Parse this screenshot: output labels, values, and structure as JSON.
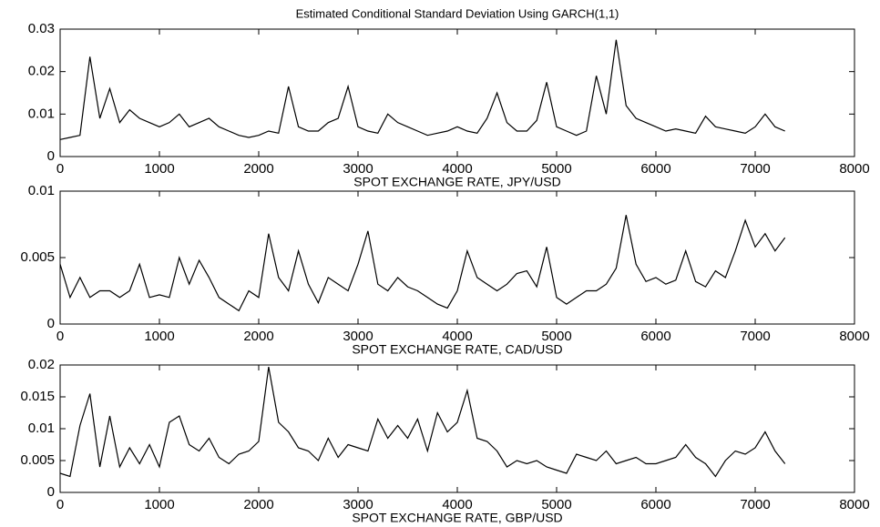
{
  "chart_data": [
    {
      "type": "line",
      "title": "Estimated Conditional Standard Deviation Using GARCH(1,1)",
      "x_label": "SPOT EXCHANGE RATE, JPY/USD",
      "x": [
        0,
        100,
        200,
        300,
        400,
        500,
        600,
        700,
        800,
        900,
        1000,
        1100,
        1200,
        1300,
        1400,
        1500,
        1600,
        1700,
        1800,
        1900,
        2000,
        2100,
        2200,
        2300,
        2400,
        2500,
        2600,
        2700,
        2800,
        2900,
        3000,
        3100,
        3200,
        3300,
        3400,
        3500,
        3600,
        3700,
        3800,
        3900,
        4000,
        4100,
        4200,
        4300,
        4400,
        4500,
        4600,
        4700,
        4800,
        4900,
        5000,
        5100,
        5200,
        5300,
        5400,
        5500,
        5600,
        5700,
        5800,
        5900,
        6000,
        6100,
        6200,
        6300,
        6400,
        6500,
        6600,
        6700,
        6800,
        6900,
        7000,
        7100,
        7200,
        7300
      ],
      "series": [
        {
          "color": "#000000",
          "values": [
            0.004,
            0.0045,
            0.005,
            0.0235,
            0.009,
            0.016,
            0.008,
            0.011,
            0.009,
            0.008,
            0.007,
            0.008,
            0.01,
            0.007,
            0.008,
            0.009,
            0.007,
            0.006,
            0.005,
            0.0045,
            0.005,
            0.006,
            0.0055,
            0.0165,
            0.007,
            0.006,
            0.006,
            0.008,
            0.009,
            0.0165,
            0.007,
            0.006,
            0.0055,
            0.01,
            0.008,
            0.007,
            0.006,
            0.005,
            0.0055,
            0.006,
            0.007,
            0.006,
            0.0055,
            0.009,
            0.015,
            0.008,
            0.006,
            0.006,
            0.0085,
            0.0175,
            0.007,
            0.006,
            0.005,
            0.006,
            0.019,
            0.01,
            0.0275,
            0.012,
            0.009,
            0.008,
            0.007,
            0.006,
            0.0065,
            0.006,
            0.0055,
            0.0095,
            0.007,
            0.0065,
            0.006,
            0.0055,
            0.007,
            0.01,
            0.007,
            0.006
          ]
        }
      ],
      "xlim": [
        0,
        8000
      ],
      "xticks": [
        0,
        1000,
        2000,
        3000,
        4000,
        5000,
        6000,
        7000,
        8000
      ],
      "ylim": [
        0,
        0.03
      ],
      "yticks": [
        0,
        0.01,
        0.02,
        0.03
      ]
    },
    {
      "type": "line",
      "x_label": "SPOT EXCHANGE RATE, CAD/USD",
      "x": [
        0,
        100,
        200,
        300,
        400,
        500,
        600,
        700,
        800,
        900,
        1000,
        1100,
        1200,
        1300,
        1400,
        1500,
        1600,
        1700,
        1800,
        1900,
        2000,
        2100,
        2200,
        2300,
        2400,
        2500,
        2600,
        2700,
        2800,
        2900,
        3000,
        3100,
        3200,
        3300,
        3400,
        3500,
        3600,
        3700,
        3800,
        3900,
        4000,
        4100,
        4200,
        4300,
        4400,
        4500,
        4600,
        4700,
        4800,
        4900,
        5000,
        5100,
        5200,
        5300,
        5400,
        5500,
        5600,
        5700,
        5800,
        5900,
        6000,
        6100,
        6200,
        6300,
        6400,
        6500,
        6600,
        6700,
        6800,
        6900,
        7000,
        7100,
        7200,
        7300
      ],
      "series": [
        {
          "color": "#000000",
          "values": [
            0.0045,
            0.002,
            0.0035,
            0.002,
            0.0025,
            0.0025,
            0.002,
            0.0025,
            0.0045,
            0.002,
            0.0022,
            0.002,
            0.005,
            0.003,
            0.0048,
            0.0035,
            0.002,
            0.0015,
            0.001,
            0.0025,
            0.002,
            0.0068,
            0.0035,
            0.0025,
            0.0055,
            0.003,
            0.0016,
            0.0035,
            0.003,
            0.0025,
            0.0045,
            0.007,
            0.003,
            0.0025,
            0.0035,
            0.0028,
            0.0025,
            0.002,
            0.0015,
            0.0012,
            0.0025,
            0.0055,
            0.0035,
            0.003,
            0.0025,
            0.003,
            0.0038,
            0.004,
            0.0028,
            0.0058,
            0.002,
            0.0015,
            0.002,
            0.0025,
            0.0025,
            0.003,
            0.0042,
            0.0082,
            0.0045,
            0.0032,
            0.0035,
            0.003,
            0.0033,
            0.0055,
            0.0032,
            0.0028,
            0.004,
            0.0035,
            0.0055,
            0.0078,
            0.0058,
            0.0068,
            0.0055,
            0.0065
          ]
        }
      ],
      "xlim": [
        0,
        8000
      ],
      "xticks": [
        0,
        1000,
        2000,
        3000,
        4000,
        5000,
        6000,
        7000,
        8000
      ],
      "ylim": [
        0,
        0.01
      ],
      "yticks": [
        0,
        0.005,
        0.01
      ]
    },
    {
      "type": "line",
      "x_label": "SPOT EXCHANGE RATE, GBP/USD",
      "x": [
        0,
        100,
        200,
        300,
        400,
        500,
        600,
        700,
        800,
        900,
        1000,
        1100,
        1200,
        1300,
        1400,
        1500,
        1600,
        1700,
        1800,
        1900,
        2000,
        2100,
        2200,
        2300,
        2400,
        2500,
        2600,
        2700,
        2800,
        2900,
        3000,
        3100,
        3200,
        3300,
        3400,
        3500,
        3600,
        3700,
        3800,
        3900,
        4000,
        4100,
        4200,
        4300,
        4400,
        4500,
        4600,
        4700,
        4800,
        4900,
        5000,
        5100,
        5200,
        5300,
        5400,
        5500,
        5600,
        5700,
        5800,
        5900,
        6000,
        6100,
        6200,
        6300,
        6400,
        6500,
        6600,
        6700,
        6800,
        6900,
        7000,
        7100,
        7200,
        7300
      ],
      "series": [
        {
          "color": "#000000",
          "values": [
            0.003,
            0.0025,
            0.0105,
            0.0155,
            0.004,
            0.012,
            0.004,
            0.007,
            0.0045,
            0.0075,
            0.004,
            0.011,
            0.012,
            0.0075,
            0.0065,
            0.0085,
            0.0055,
            0.0045,
            0.006,
            0.0065,
            0.008,
            0.0197,
            0.011,
            0.0095,
            0.007,
            0.0065,
            0.005,
            0.0085,
            0.0055,
            0.0075,
            0.007,
            0.0065,
            0.0115,
            0.0085,
            0.0105,
            0.0085,
            0.0115,
            0.0065,
            0.0125,
            0.0095,
            0.011,
            0.016,
            0.0085,
            0.008,
            0.0065,
            0.004,
            0.005,
            0.0045,
            0.005,
            0.004,
            0.0035,
            0.003,
            0.006,
            0.0055,
            0.005,
            0.0065,
            0.0045,
            0.005,
            0.0055,
            0.0045,
            0.0045,
            0.005,
            0.0055,
            0.0075,
            0.0055,
            0.0045,
            0.0025,
            0.005,
            0.0065,
            0.006,
            0.007,
            0.0095,
            0.0065,
            0.0045
          ]
        }
      ],
      "xlim": [
        0,
        8000
      ],
      "xticks": [
        0,
        1000,
        2000,
        3000,
        4000,
        5000,
        6000,
        7000,
        8000
      ],
      "ylim": [
        0,
        0.02
      ],
      "yticks": [
        0,
        0.005,
        0.01,
        0.015,
        0.02
      ]
    }
  ]
}
